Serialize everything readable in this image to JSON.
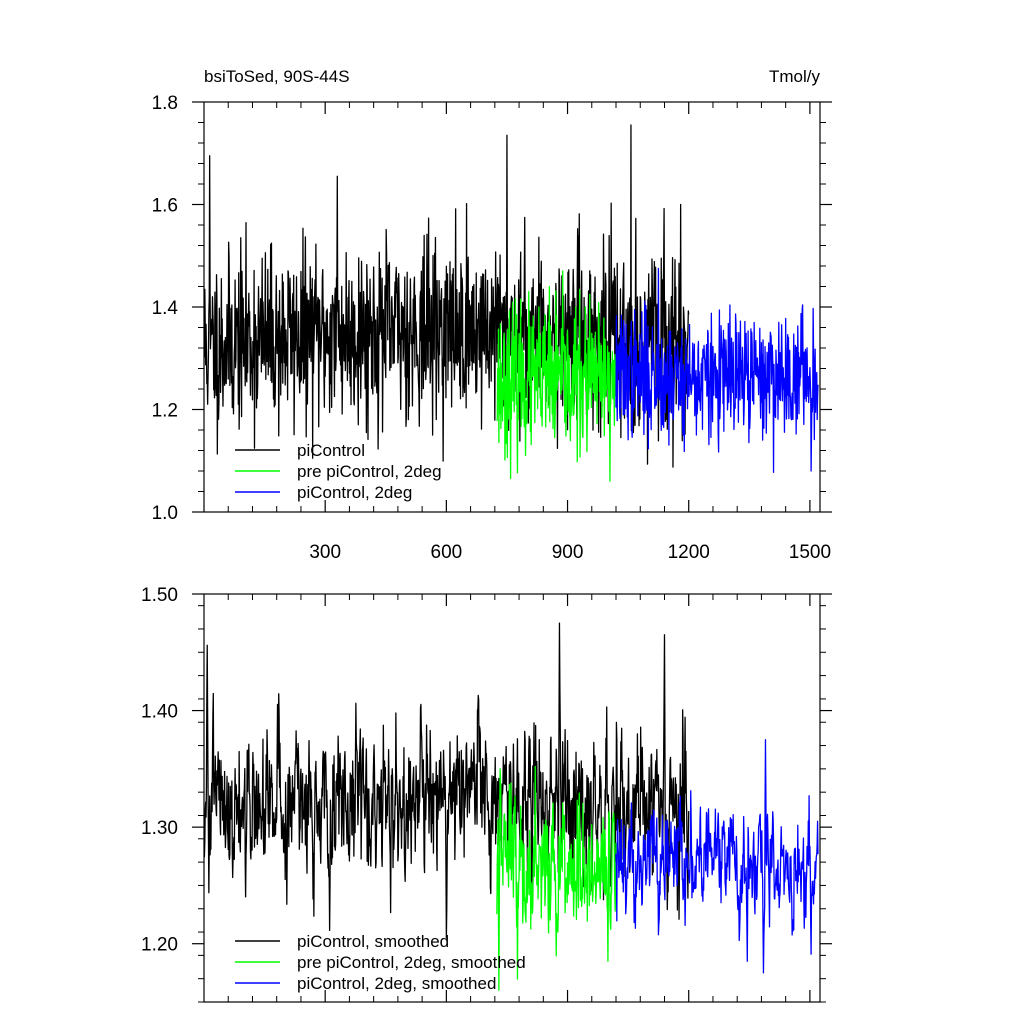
{
  "chart_data": [
    {
      "type": "line",
      "title_left": "bsiToSed, 90S-44S",
      "title_right": "Tmol/y",
      "xlabel": "",
      "ylabel": "",
      "xlim": [
        0,
        1525
      ],
      "ylim": [
        1.0,
        1.8
      ],
      "x_ticks": [
        300,
        600,
        900,
        1200,
        1500
      ],
      "x_tick_labels": [
        "300",
        "600",
        "900",
        "1200",
        "1500"
      ],
      "y_ticks": [
        1.0,
        1.2,
        1.4,
        1.6,
        1.8
      ],
      "y_tick_labels": [
        "1.0",
        "1.2",
        "1.4",
        "1.6",
        "1.8"
      ],
      "legend_position": "bottom-left",
      "series": [
        {
          "name": "piControl",
          "color": "#000000",
          "x_range": [
            1,
            1200
          ],
          "mean": 1.325,
          "std": 0.085,
          "mean_shift": 0.03,
          "generator": "annual-noise",
          "seed": 11,
          "peaks": [
            {
              "x": 14,
              "y": 1.695
            },
            {
              "x": 330,
              "y": 1.655
            },
            {
              "x": 750,
              "y": 1.735
            },
            {
              "x": 1057,
              "y": 1.755
            },
            {
              "x": 1180,
              "y": 1.6
            }
          ]
        },
        {
          "name": "pre piControl, 2deg",
          "color": "#00ff00",
          "x_range": [
            725,
            1020
          ],
          "mean": 1.255,
          "std": 0.07,
          "mean_shift": 0.0,
          "generator": "annual-noise",
          "seed": 23,
          "peaks": [
            {
              "x": 855,
              "y": 1.44
            },
            {
              "x": 1005,
              "y": 1.06
            }
          ]
        },
        {
          "name": "piControl, 2deg",
          "color": "#0000ff",
          "x_range": [
            1020,
            1520
          ],
          "mean": 1.27,
          "std": 0.06,
          "mean_shift": -0.01,
          "generator": "annual-noise",
          "seed": 37,
          "peaks": [
            {
              "x": 1125,
              "y": 1.475
            },
            {
              "x": 1503,
              "y": 1.08
            }
          ]
        }
      ]
    },
    {
      "type": "line",
      "xlabel": "",
      "ylabel": "",
      "xlim": [
        0,
        1525
      ],
      "ylim": [
        1.15,
        1.5
      ],
      "x_ticks": [
        300,
        600,
        900,
        1200,
        1500
      ],
      "x_tick_labels": [],
      "y_ticks": [
        1.2,
        1.3,
        1.4,
        1.5
      ],
      "y_tick_labels": [
        "1.20",
        "1.30",
        "1.40",
        "1.50"
      ],
      "legend_position": "bottom-left",
      "series": [
        {
          "name": "piControl, smoothed",
          "color": "#000000",
          "x_range": [
            1,
            1200
          ],
          "mean": 1.315,
          "std": 0.038,
          "mean_shift": 0.01,
          "generator": "smoothed-noise",
          "seed": 101,
          "peaks": [
            {
              "x": 8,
              "y": 1.456
            },
            {
              "x": 880,
              "y": 1.475
            },
            {
              "x": 1140,
              "y": 1.465
            },
            {
              "x": 600,
              "y": 1.205
            }
          ]
        },
        {
          "name": "pre piControl, 2deg, smoothed",
          "color": "#00ff00",
          "x_range": [
            725,
            1020
          ],
          "mean": 1.265,
          "std": 0.035,
          "mean_shift": 0.0,
          "generator": "smoothed-noise",
          "seed": 113,
          "peaks": [
            {
              "x": 730,
              "y": 1.16
            },
            {
              "x": 820,
              "y": 1.352
            },
            {
              "x": 1000,
              "y": 1.185
            }
          ]
        },
        {
          "name": "piControl, 2deg, smoothed",
          "color": "#0000ff",
          "x_range": [
            1020,
            1520
          ],
          "mean": 1.268,
          "std": 0.027,
          "mean_shift": 0.0,
          "generator": "smoothed-noise",
          "seed": 127,
          "peaks": [
            {
              "x": 1390,
              "y": 1.375
            },
            {
              "x": 1385,
              "y": 1.175
            },
            {
              "x": 1345,
              "y": 1.185
            }
          ]
        }
      ]
    }
  ]
}
